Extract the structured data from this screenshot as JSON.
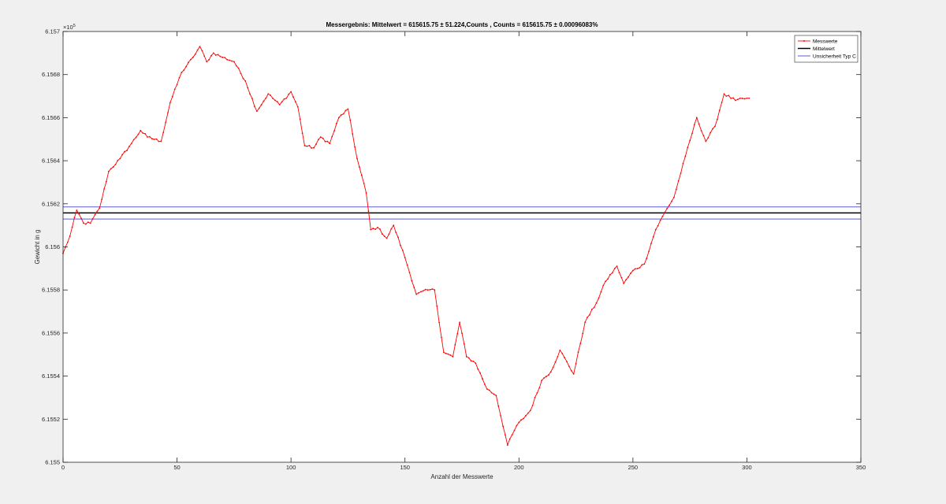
{
  "chart_data": {
    "type": "line",
    "title": "Messergebnis: Mittelwert = 615615.75 ± 51.224,Counts , Counts = 615615.75 ± 0.00096083%",
    "xlabel": "Anzahl der Messwerte",
    "ylabel": "Gewicht in g",
    "xlim": [
      0,
      350
    ],
    "ylim": [
      6.155,
      6.157
    ],
    "x_ticks": [
      0,
      50,
      100,
      150,
      200,
      250,
      300,
      350
    ],
    "x_tick_labels": [
      "0",
      "50",
      "100",
      "150",
      "200",
      "250",
      "300",
      "350"
    ],
    "y_ticks": [
      6.155,
      6.1552,
      6.1554,
      6.1556,
      6.1558,
      6.156,
      6.1562,
      6.1564,
      6.1566,
      6.1568,
      6.157
    ],
    "y_tick_labels": [
      "6.155",
      "6.1552",
      "6.1554",
      "6.1556",
      "6.1558",
      "6.156",
      "6.1562",
      "6.1564",
      "6.1566",
      "6.1568",
      "6.157"
    ],
    "y_exponent_label": "×10",
    "y_exponent_power": "5",
    "grid": false,
    "legend_position": "top-right",
    "colors": {
      "messwerte": "#ff0000",
      "mittelwert": "#000000",
      "unsicherheit": "#5b5bd6",
      "axes_bg": "#ffffff",
      "figure_bg": "#f0f0f0"
    },
    "series": [
      {
        "name": "Messwerte",
        "keypoints": [
          [
            0,
            6.15597
          ],
          [
            3,
            6.15605
          ],
          [
            6,
            6.15617
          ],
          [
            9,
            6.15611
          ],
          [
            12,
            6.15611
          ],
          [
            16,
            6.15618
          ],
          [
            20,
            6.15635
          ],
          [
            25,
            6.15641
          ],
          [
            30,
            6.15648
          ],
          [
            34,
            6.15654
          ],
          [
            37,
            6.15651
          ],
          [
            43,
            6.15649
          ],
          [
            47,
            6.15667
          ],
          [
            52,
            6.15681
          ],
          [
            57,
            6.15688
          ],
          [
            60,
            6.15693
          ],
          [
            63,
            6.15686
          ],
          [
            66,
            6.1569
          ],
          [
            70,
            6.15688
          ],
          [
            75,
            6.15686
          ],
          [
            80,
            6.15677
          ],
          [
            85,
            6.15663
          ],
          [
            90,
            6.15671
          ],
          [
            95,
            6.15666
          ],
          [
            100,
            6.15672
          ],
          [
            103,
            6.15665
          ],
          [
            106,
            6.15647
          ],
          [
            110,
            6.15646
          ],
          [
            113,
            6.15651
          ],
          [
            117,
            6.15648
          ],
          [
            121,
            6.1566
          ],
          [
            125,
            6.15664
          ],
          [
            129,
            6.15641
          ],
          [
            133,
            6.15625
          ],
          [
            135,
            6.15608
          ],
          [
            138,
            6.15609
          ],
          [
            142,
            6.15604
          ],
          [
            145,
            6.1561
          ],
          [
            150,
            6.15595
          ],
          [
            155,
            6.15578
          ],
          [
            160,
            6.1558
          ],
          [
            163,
            6.1558
          ],
          [
            167,
            6.15551
          ],
          [
            171,
            6.15549
          ],
          [
            174,
            6.15565
          ],
          [
            177,
            6.15549
          ],
          [
            181,
            6.15546
          ],
          [
            186,
            6.15534
          ],
          [
            190,
            6.15531
          ],
          [
            195,
            6.15508
          ],
          [
            199,
            6.15517
          ],
          [
            205,
            6.15524
          ],
          [
            210,
            6.15538
          ],
          [
            214,
            6.15542
          ],
          [
            218,
            6.15552
          ],
          [
            224,
            6.15541
          ],
          [
            229,
            6.15565
          ],
          [
            234,
            6.15574
          ],
          [
            238,
            6.15584
          ],
          [
            243,
            6.15591
          ],
          [
            246,
            6.15583
          ],
          [
            250,
            6.15589
          ],
          [
            255,
            6.15592
          ],
          [
            260,
            6.15608
          ],
          [
            264,
            6.15616
          ],
          [
            268,
            6.15623
          ],
          [
            273,
            6.15642
          ],
          [
            278,
            6.1566
          ],
          [
            282,
            6.15649
          ],
          [
            286,
            6.15656
          ],
          [
            290,
            6.15671
          ],
          [
            295,
            6.15668
          ],
          [
            300,
            6.15669
          ],
          [
            301,
            6.15669
          ]
        ]
      },
      {
        "name": "Mittelwert",
        "x": [
          0,
          350
        ],
        "y": [
          6.1561575,
          6.1561575
        ]
      },
      {
        "name": "Unsicherheit Typ C",
        "x": [
          0,
          350
        ],
        "y_upper": [
          6.1561857,
          6.1561857
        ],
        "y_lower": [
          6.1561293,
          6.1561293
        ]
      }
    ]
  }
}
